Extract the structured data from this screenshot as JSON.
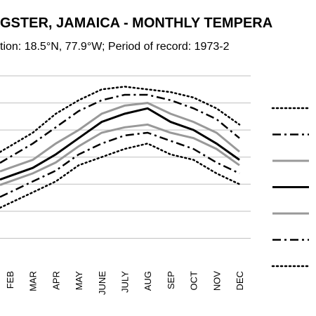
{
  "chart_data": {
    "type": "line",
    "title": "GSTER, JAMAICA - MONTHLY TEMPERA",
    "subtitle": "tion: 18.5°N, 77.9°W; Period of record: 1973-2",
    "categories": [
      "FEB",
      "MAR",
      "APR",
      "MAY",
      "JUNE",
      "JULY",
      "AUG",
      "SEP",
      "OCT",
      "NOV",
      "DEC"
    ],
    "ylim": [
      0,
      7
    ],
    "grid": true,
    "legend_position": "right",
    "series": [
      {
        "style": "dotted",
        "color": "#000000",
        "values": [
          4.4,
          4.9,
          5.6,
          6.1,
          6.5,
          6.6,
          6.5,
          6.4,
          6.2,
          5.8,
          5.2
        ]
      },
      {
        "style": "dashdot",
        "color": "#000000",
        "values": [
          4.0,
          4.5,
          5.1,
          5.7,
          6.1,
          6.3,
          6.3,
          6.1,
          5.8,
          5.4,
          4.7
        ]
      },
      {
        "style": "solid",
        "color": "#999999",
        "values": [
          3.6,
          3.9,
          4.5,
          5.0,
          5.6,
          5.9,
          6.0,
          5.6,
          5.3,
          4.9,
          4.2
        ]
      },
      {
        "style": "solid",
        "color": "#000000",
        "values": [
          3.3,
          3.6,
          4.1,
          4.7,
          5.3,
          5.6,
          5.8,
          5.3,
          5.0,
          4.5,
          3.9
        ]
      },
      {
        "style": "solid",
        "color": "#999999",
        "values": [
          3.1,
          3.4,
          3.8,
          4.4,
          4.9,
          5.1,
          5.2,
          4.9,
          4.7,
          4.3,
          3.7
        ]
      },
      {
        "style": "dashdot",
        "color": "#000000",
        "values": [
          2.7,
          3.1,
          3.5,
          4.1,
          4.5,
          4.8,
          4.9,
          4.6,
          4.3,
          3.8,
          3.4
        ]
      },
      {
        "style": "dotted",
        "color": "#000000",
        "values": [
          2.3,
          2.7,
          3.1,
          3.7,
          4.0,
          4.3,
          4.5,
          4.1,
          3.9,
          3.4,
          3.0
        ]
      }
    ]
  }
}
